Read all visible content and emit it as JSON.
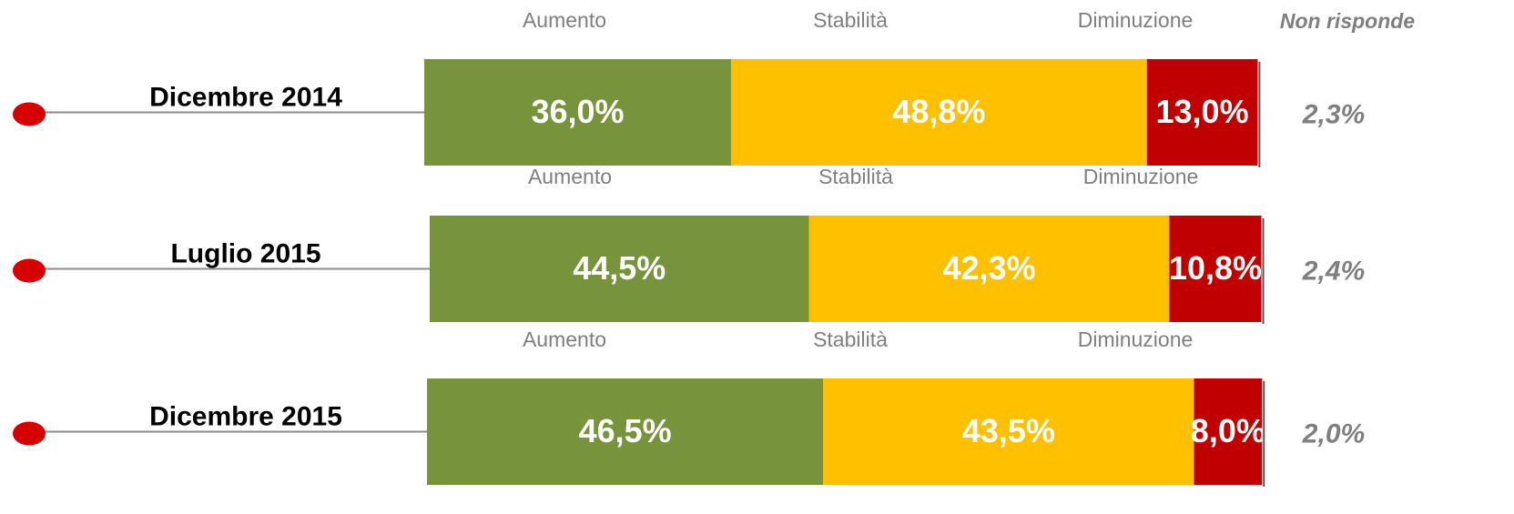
{
  "chart_data": {
    "type": "stacked_barh",
    "categories": [
      "Dicembre 2014",
      "Luglio 2015",
      "Dicembre 2015"
    ],
    "series": [
      {
        "name": "Aumento",
        "color": "#77933c",
        "values": [
          36.0,
          44.5,
          46.5
        ],
        "value_labels": [
          "36,0%",
          "44,5%",
          "46,5%"
        ]
      },
      {
        "name": "Stabilità",
        "color": "#ffc000",
        "values": [
          48.8,
          42.3,
          43.5
        ],
        "value_labels": [
          "48,8%",
          "42,3%",
          "43,5%"
        ]
      },
      {
        "name": "Diminuzione",
        "color": "#c00000",
        "values": [
          13.0,
          10.8,
          8.0
        ],
        "value_labels": [
          "13,0%",
          "10,8%",
          "8,0%"
        ]
      }
    ],
    "no_answer": {
      "name": "Non risponde",
      "color": "#7f7f7f",
      "values": [
        2.3,
        2.4,
        2.0
      ],
      "value_labels": [
        "2,3%",
        "2,4%",
        "2,0%"
      ]
    }
  }
}
